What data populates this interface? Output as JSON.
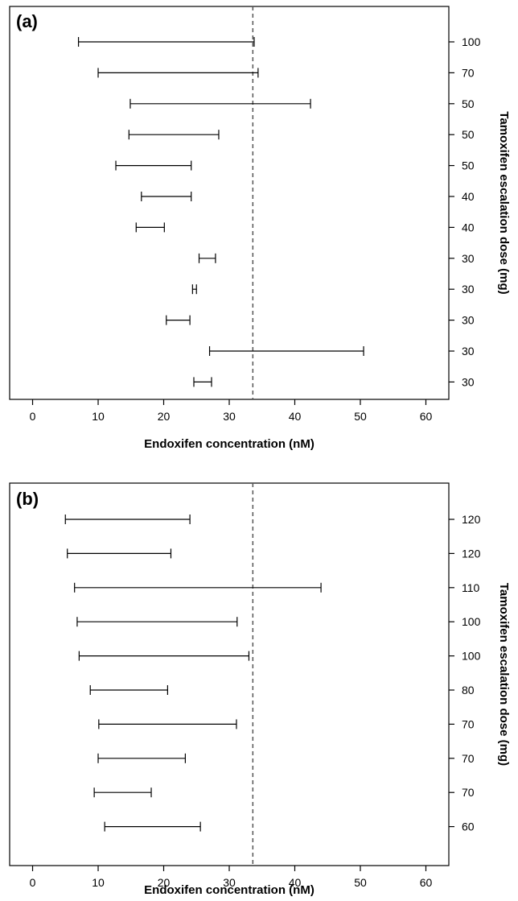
{
  "chart_data": [
    {
      "type": "interval",
      "panel_label": "(a)",
      "xlabel": "Endoxifen concentration (nM)",
      "ylabel": "Tamoxifen escalation dose (mg)",
      "xlim": [
        -3.5,
        63.5
      ],
      "x_ticks": [
        0,
        10,
        20,
        30,
        40,
        50,
        60
      ],
      "reference_line_x": 33.6,
      "intervals": [
        {
          "dose": "100",
          "low": 7.0,
          "high": 33.8
        },
        {
          "dose": "70",
          "low": 10.0,
          "high": 34.4
        },
        {
          "dose": "50",
          "low": 14.9,
          "high": 42.4
        },
        {
          "dose": "50",
          "low": 14.7,
          "high": 28.4
        },
        {
          "dose": "50",
          "low": 12.7,
          "high": 24.2
        },
        {
          "dose": "40",
          "low": 16.6,
          "high": 24.2
        },
        {
          "dose": "40",
          "low": 15.8,
          "high": 20.1
        },
        {
          "dose": "30",
          "low": 25.4,
          "high": 27.9
        },
        {
          "dose": "30",
          "low": 24.4,
          "high": 25.0
        },
        {
          "dose": "30",
          "low": 20.4,
          "high": 24.0
        },
        {
          "dose": "30",
          "low": 27.0,
          "high": 50.5
        },
        {
          "dose": "30",
          "low": 24.6,
          "high": 27.3
        }
      ]
    },
    {
      "type": "interval",
      "panel_label": "(b)",
      "xlabel": "Endoxifen concentration (nM)",
      "ylabel": "Tamoxifen escalation dose (mg)",
      "xlim": [
        -3.5,
        63.5
      ],
      "x_ticks": [
        0,
        10,
        20,
        30,
        40,
        50,
        60
      ],
      "reference_line_x": 33.6,
      "intervals": [
        {
          "dose": "120",
          "low": 5.0,
          "high": 24.0
        },
        {
          "dose": "120",
          "low": 5.3,
          "high": 21.1
        },
        {
          "dose": "110",
          "low": 6.4,
          "high": 44.0
        },
        {
          "dose": "100",
          "low": 6.8,
          "high": 31.2
        },
        {
          "dose": "100",
          "low": 7.1,
          "high": 33.0
        },
        {
          "dose": "80",
          "low": 8.8,
          "high": 20.6
        },
        {
          "dose": "70",
          "low": 10.1,
          "high": 31.1
        },
        {
          "dose": "70",
          "low": 10.0,
          "high": 23.3
        },
        {
          "dose": "70",
          "low": 9.4,
          "high": 18.1
        },
        {
          "dose": "60",
          "low": 11.0,
          "high": 25.6
        }
      ]
    }
  ]
}
